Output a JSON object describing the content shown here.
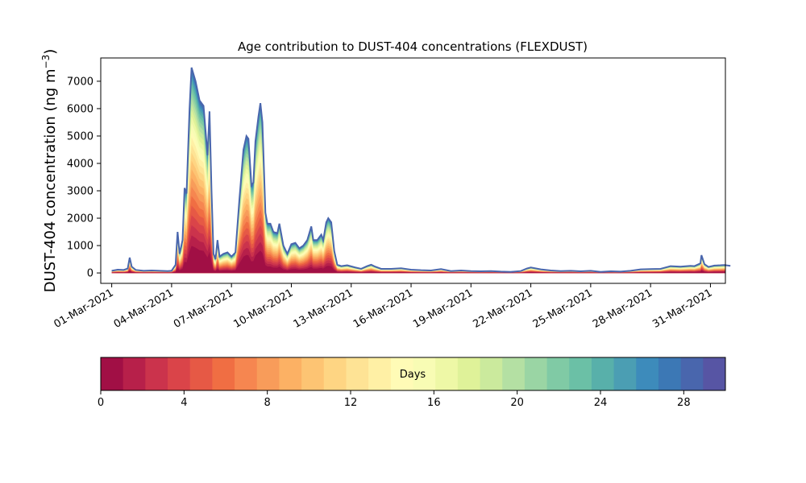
{
  "chart_data": {
    "type": "area",
    "title": "Age contribution to DUST-404 concentrations (FLEXDUST)",
    "ylabel_main": "DUST-404 concentration (ng m",
    "ylabel_sup": "−3",
    "ylabel_close": ")",
    "xlabel": "",
    "ylim": [
      -380,
      7850
    ],
    "xlim_days": [
      -0.55,
      30.75
    ],
    "y_ticks": [
      {
        "value": 0,
        "label": "0"
      },
      {
        "value": 1000,
        "label": "1000"
      },
      {
        "value": 2000,
        "label": "2000"
      },
      {
        "value": 3000,
        "label": "3000"
      },
      {
        "value": 4000,
        "label": "4000"
      },
      {
        "value": 5000,
        "label": "5000"
      },
      {
        "value": 6000,
        "label": "6000"
      },
      {
        "value": 7000,
        "label": "7000"
      }
    ],
    "x_ticks": [
      {
        "day": 0,
        "label": "01-Mar-2021"
      },
      {
        "day": 3,
        "label": "04-Mar-2021"
      },
      {
        "day": 6,
        "label": "07-Mar-2021"
      },
      {
        "day": 9,
        "label": "10-Mar-2021"
      },
      {
        "day": 12,
        "label": "13-Mar-2021"
      },
      {
        "day": 15,
        "label": "16-Mar-2021"
      },
      {
        "day": 18,
        "label": "19-Mar-2021"
      },
      {
        "day": 21,
        "label": "22-Mar-2021"
      },
      {
        "day": 24,
        "label": "25-Mar-2021"
      },
      {
        "day": 27,
        "label": "28-Mar-2021"
      },
      {
        "day": 30,
        "label": "31-Mar-2021"
      }
    ],
    "total_concentration": [
      [
        0.0,
        80
      ],
      [
        0.3,
        120
      ],
      [
        0.6,
        110
      ],
      [
        0.8,
        160
      ],
      [
        0.9,
        560
      ],
      [
        1.0,
        230
      ],
      [
        1.2,
        110
      ],
      [
        1.6,
        80
      ],
      [
        2.0,
        90
      ],
      [
        2.4,
        80
      ],
      [
        2.8,
        70
      ],
      [
        3.0,
        80
      ],
      [
        3.2,
        300
      ],
      [
        3.3,
        1500
      ],
      [
        3.4,
        700
      ],
      [
        3.55,
        1200
      ],
      [
        3.65,
        3100
      ],
      [
        3.75,
        2900
      ],
      [
        3.9,
        6000
      ],
      [
        4.0,
        7500
      ],
      [
        4.2,
        7000
      ],
      [
        4.4,
        6300
      ],
      [
        4.6,
        6100
      ],
      [
        4.8,
        4300
      ],
      [
        4.9,
        5900
      ],
      [
        5.0,
        3000
      ],
      [
        5.1,
        700
      ],
      [
        5.2,
        500
      ],
      [
        5.3,
        1200
      ],
      [
        5.4,
        600
      ],
      [
        5.6,
        700
      ],
      [
        5.8,
        750
      ],
      [
        6.0,
        600
      ],
      [
        6.2,
        750
      ],
      [
        6.4,
        2700
      ],
      [
        6.6,
        4500
      ],
      [
        6.75,
        5000
      ],
      [
        6.85,
        4900
      ],
      [
        7.0,
        3200
      ],
      [
        7.1,
        3300
      ],
      [
        7.2,
        4800
      ],
      [
        7.35,
        5700
      ],
      [
        7.45,
        6200
      ],
      [
        7.55,
        5500
      ],
      [
        7.7,
        2200
      ],
      [
        7.8,
        1800
      ],
      [
        7.95,
        1800
      ],
      [
        8.1,
        1500
      ],
      [
        8.3,
        1450
      ],
      [
        8.4,
        1800
      ],
      [
        8.6,
        1000
      ],
      [
        8.8,
        700
      ],
      [
        9.0,
        1050
      ],
      [
        9.2,
        1100
      ],
      [
        9.4,
        900
      ],
      [
        9.6,
        1000
      ],
      [
        9.8,
        1200
      ],
      [
        9.9,
        1450
      ],
      [
        10.0,
        1700
      ],
      [
        10.1,
        1200
      ],
      [
        10.3,
        1200
      ],
      [
        10.5,
        1400
      ],
      [
        10.6,
        1200
      ],
      [
        10.75,
        1850
      ],
      [
        10.85,
        2000
      ],
      [
        11.0,
        1850
      ],
      [
        11.15,
        800
      ],
      [
        11.3,
        300
      ],
      [
        11.5,
        250
      ],
      [
        11.8,
        280
      ],
      [
        12.2,
        200
      ],
      [
        12.5,
        150
      ],
      [
        12.8,
        250
      ],
      [
        13.0,
        300
      ],
      [
        13.2,
        230
      ],
      [
        13.5,
        150
      ],
      [
        14.0,
        150
      ],
      [
        14.5,
        170
      ],
      [
        15.0,
        120
      ],
      [
        15.5,
        100
      ],
      [
        16.0,
        90
      ],
      [
        16.5,
        140
      ],
      [
        17.0,
        70
      ],
      [
        17.5,
        90
      ],
      [
        18.0,
        70
      ],
      [
        18.5,
        60
      ],
      [
        19.0,
        70
      ],
      [
        19.5,
        50
      ],
      [
        20.0,
        40
      ],
      [
        20.5,
        70
      ],
      [
        20.8,
        160
      ],
      [
        21.0,
        200
      ],
      [
        21.5,
        130
      ],
      [
        22.0,
        90
      ],
      [
        22.5,
        70
      ],
      [
        23.0,
        80
      ],
      [
        23.5,
        60
      ],
      [
        24.0,
        80
      ],
      [
        24.5,
        40
      ],
      [
        25.0,
        60
      ],
      [
        25.5,
        50
      ],
      [
        26.0,
        80
      ],
      [
        26.5,
        130
      ],
      [
        27.0,
        140
      ],
      [
        27.5,
        150
      ],
      [
        28.0,
        250
      ],
      [
        28.5,
        230
      ],
      [
        29.0,
        260
      ],
      [
        29.2,
        250
      ],
      [
        29.5,
        350
      ],
      [
        29.55,
        650
      ],
      [
        29.7,
        320
      ],
      [
        29.9,
        220
      ],
      [
        30.2,
        270
      ],
      [
        30.5,
        280
      ],
      [
        30.7,
        290
      ],
      [
        31.0,
        260
      ]
    ],
    "colorbar": {
      "label": "Days",
      "min": 0,
      "max": 30,
      "ticks": [
        {
          "value": 0,
          "label": "0"
        },
        {
          "value": 4,
          "label": "4"
        },
        {
          "value": 8,
          "label": "8"
        },
        {
          "value": 12,
          "label": "12"
        },
        {
          "value": 16,
          "label": "16"
        },
        {
          "value": 20,
          "label": "20"
        },
        {
          "value": 24,
          "label": "24"
        },
        {
          "value": 28,
          "label": "28"
        }
      ],
      "colors": [
        "#a10f45",
        "#b7204a",
        "#cb334c",
        "#da4449",
        "#e65945",
        "#f06e43",
        "#f68650",
        "#f89c5a",
        "#fcb164",
        "#fdc473",
        "#fed583",
        "#fee395",
        "#fff0a5",
        "#fffbb6",
        "#f8fcb4",
        "#eef8a6",
        "#dff299",
        "#cbea9d",
        "#b4e0a3",
        "#9ad5a4",
        "#80caa5",
        "#6bc0a6",
        "#58b0aa",
        "#4b9eb3",
        "#3d8bbb",
        "#3c78b5",
        "#4966ad",
        "#5755a4"
      ]
    },
    "outline_color": "#4966ad"
  }
}
